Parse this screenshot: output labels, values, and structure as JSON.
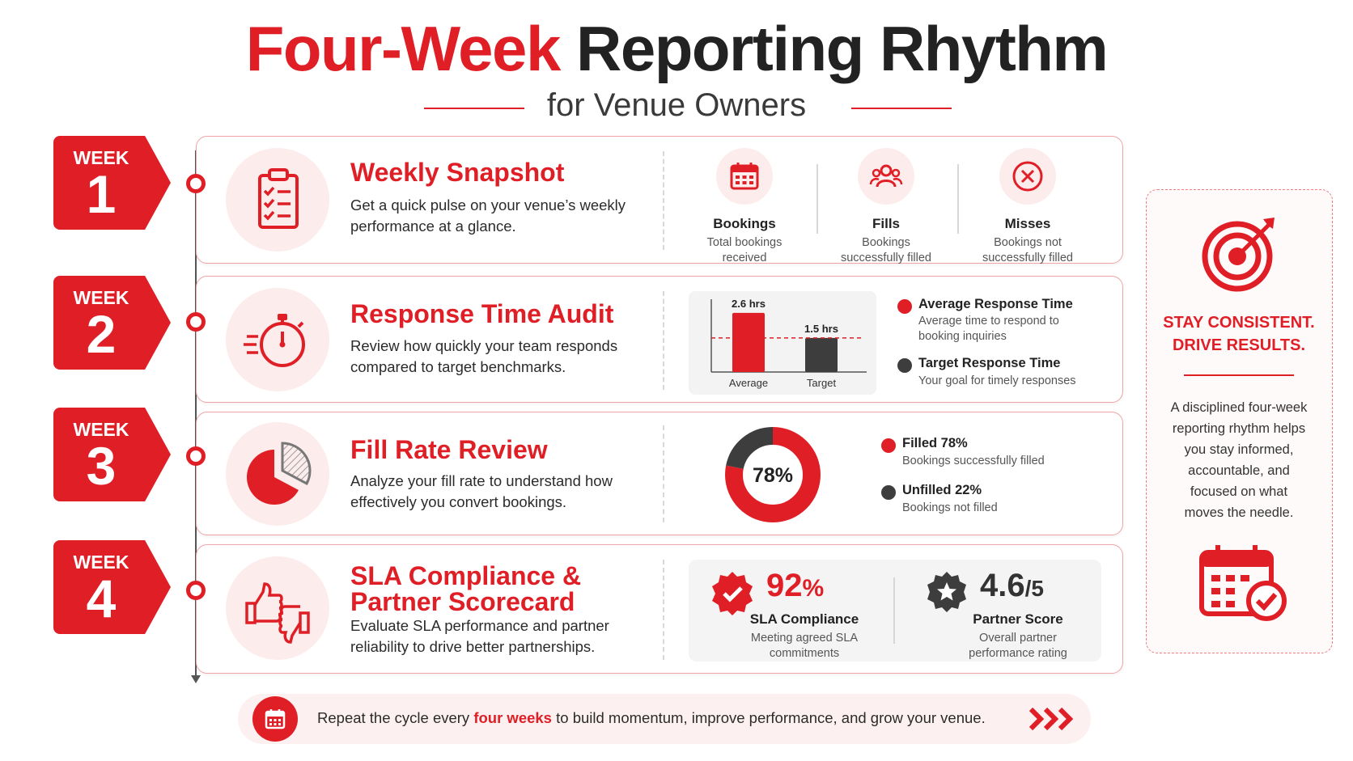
{
  "header": {
    "title_red": "Four-Week",
    "title_dark": "Reporting Rhythm",
    "subtitle": "for Venue Owners"
  },
  "colors": {
    "accent": "#e01e26",
    "dark": "#3d3d3d",
    "soft": "#fdecec"
  },
  "weeks": [
    {
      "badge_label": "WEEK",
      "badge_number": "1",
      "icon": "clipboard-checklist-icon",
      "title": "Weekly Snapshot",
      "desc": "Get a quick pulse on your venue’s weekly performance at a glance.",
      "metrics": [
        {
          "icon": "calendar-icon",
          "label": "Bookings",
          "desc_1": "Total bookings",
          "desc_2": "received"
        },
        {
          "icon": "people-icon",
          "label": "Fills",
          "desc_1": "Bookings",
          "desc_2": "successfully filled"
        },
        {
          "icon": "x-circle-icon",
          "label": "Misses",
          "desc_1": "Bookings not",
          "desc_2": "successfully filled"
        }
      ]
    },
    {
      "badge_label": "WEEK",
      "badge_number": "2",
      "icon": "stopwatch-icon",
      "title": "Response Time Audit",
      "desc": "Review how quickly your team responds compared to target benchmarks.",
      "legend": [
        {
          "color": "#e01e26",
          "title": "Average Response Time",
          "desc_1": "Average time to respond to",
          "desc_2": "booking inquiries"
        },
        {
          "color": "#3d3d3d",
          "title": "Target Response Time",
          "desc_1": "Your goal for timely responses",
          "desc_2": ""
        }
      ]
    },
    {
      "badge_label": "WEEK",
      "badge_number": "3",
      "icon": "pie-chart-icon",
      "title": "Fill Rate Review",
      "desc": "Analyze your fill rate to understand how effectively you convert bookings.",
      "donut_label": "78%",
      "legend": [
        {
          "color": "#e01e26",
          "title": "Filled 78%",
          "desc": "Bookings successfully filled"
        },
        {
          "color": "#3d3d3d",
          "title": "Unfilled 22%",
          "desc": "Bookings not filled"
        }
      ]
    },
    {
      "badge_label": "WEEK",
      "badge_number": "4",
      "icon": "thumbs-up-down-icon",
      "title_1": "SLA Compliance &",
      "title_2": "Partner Scorecard",
      "desc": "Evaluate SLA performance and partner reliability to drive better partnerships.",
      "sla": {
        "value": "92",
        "unit": "%",
        "label": "SLA Compliance",
        "desc_1": "Meeting agreed SLA",
        "desc_2": "commitments"
      },
      "partner": {
        "value": "4.6",
        "unit": "/5",
        "label": "Partner Score",
        "desc_1": "Overall partner",
        "desc_2": "performance rating"
      }
    }
  ],
  "chart_data": [
    {
      "type": "bar",
      "categories": [
        "Average",
        "Target"
      ],
      "values": [
        2.6,
        1.5
      ],
      "value_labels": [
        "2.6 hrs",
        "1.5 hrs"
      ],
      "colors": [
        "#e01e26",
        "#3d3d3d"
      ],
      "reference_line": 1.5,
      "ylim": [
        0,
        3.2
      ],
      "title": "",
      "xlabel": "",
      "ylabel": ""
    },
    {
      "type": "pie",
      "categories": [
        "Filled",
        "Unfilled"
      ],
      "values": [
        78,
        22
      ],
      "colors": [
        "#e01e26",
        "#3d3d3d"
      ],
      "center_label": "78%",
      "title": ""
    }
  ],
  "sidebar": {
    "icon_top": "target-icon",
    "headline_1": "STAY CONSISTENT.",
    "headline_2": "DRIVE RESULTS.",
    "body_1": "A disciplined four-week",
    "body_2": "reporting rhythm helps",
    "body_3": "you stay informed,",
    "body_4": "accountable, and",
    "body_5": "focused on what",
    "body_6": "moves the needle.",
    "icon_bottom": "calendar-check-icon"
  },
  "footer": {
    "icon": "calendar-icon",
    "text_before": "Repeat the cycle every ",
    "text_highlight": "four weeks",
    "text_after": " to build momentum, improve performance, and grow your venue.",
    "arrow_icon": "triple-chevron-right-icon"
  }
}
